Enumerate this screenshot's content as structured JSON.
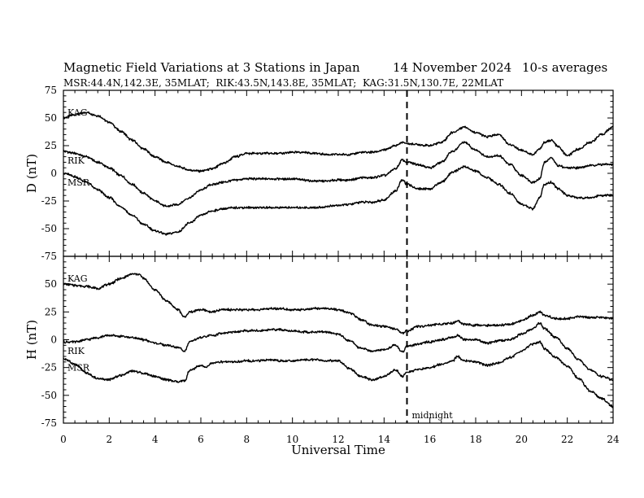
{
  "header": {
    "title": "Magnetic Field Variations at 3 Stations in Japan",
    "date": "14 November 2024",
    "averaging": "10-s averages",
    "stations_line": "MSR:44.4N,142.3E, 35MLAT;  RIK:43.5N,143.8E, 35MLAT;  KAG:31.5N,130.7E, 22MLAT"
  },
  "annotation": {
    "midnight_label": "midnight",
    "midnight_ut": 15
  },
  "chart_data": [
    {
      "id": "D",
      "type": "line",
      "ylabel": "D (nT)",
      "xlabel": "",
      "xlim": [
        0,
        24
      ],
      "ylim": [
        -75,
        75
      ],
      "yticks": [
        75,
        50,
        25,
        0,
        -25,
        -50,
        -75
      ],
      "grid": false,
      "series": [
        {
          "name": "KAG",
          "x": [
            0,
            0.5,
            1,
            1.5,
            2,
            2.5,
            3,
            3.5,
            4,
            4.5,
            5,
            5.5,
            6,
            6.5,
            7,
            7.5,
            8,
            8.5,
            9,
            9.5,
            10,
            10.5,
            11,
            11.5,
            12,
            12.5,
            13,
            13.5,
            14,
            14.5,
            14.8,
            15,
            15.5,
            16,
            16.5,
            17,
            17.5,
            18,
            18.5,
            19,
            19.5,
            20,
            20.5,
            20.8,
            21,
            21.3,
            21.6,
            22,
            22.5,
            23,
            23.5,
            24
          ],
          "values": [
            50,
            53,
            55,
            52,
            46,
            38,
            30,
            22,
            15,
            10,
            6,
            3,
            2,
            4,
            9,
            15,
            18,
            18,
            18,
            18,
            19,
            19,
            18,
            17,
            17,
            17,
            19,
            19,
            21,
            25,
            28,
            27,
            26,
            25,
            28,
            37,
            42,
            37,
            33,
            35,
            26,
            21,
            17,
            22,
            28,
            30,
            24,
            16,
            22,
            28,
            35,
            42
          ]
        },
        {
          "name": "RIK",
          "x": [
            0,
            0.5,
            1,
            1.5,
            2,
            2.5,
            3,
            3.5,
            4,
            4.5,
            5,
            5.5,
            6,
            6.5,
            7,
            7.5,
            8,
            8.5,
            9,
            9.5,
            10,
            10.5,
            11,
            11.5,
            12,
            12.5,
            13,
            13.5,
            14,
            14.5,
            14.8,
            15,
            15.5,
            16,
            16.5,
            17,
            17.5,
            18,
            18.5,
            19,
            19.5,
            20,
            20.5,
            20.8,
            21,
            21.3,
            21.6,
            22,
            22.5,
            23,
            23.5,
            24
          ],
          "values": [
            20,
            18,
            15,
            10,
            5,
            -2,
            -10,
            -18,
            -25,
            -30,
            -28,
            -22,
            -15,
            -10,
            -8,
            -6,
            -5,
            -5,
            -5,
            -5,
            -5,
            -6,
            -7,
            -7,
            -6,
            -6,
            -4,
            -4,
            -2,
            4,
            12,
            10,
            8,
            5,
            10,
            20,
            28,
            21,
            15,
            16,
            8,
            -2,
            -8,
            -5,
            10,
            14,
            7,
            5,
            5,
            7,
            8,
            8
          ]
        },
        {
          "name": "MSR",
          "x": [
            0,
            0.5,
            1,
            1.5,
            2,
            2.5,
            3,
            3.5,
            4,
            4.5,
            5,
            5.5,
            6,
            6.5,
            7,
            7.5,
            8,
            8.5,
            9,
            9.5,
            10,
            10.5,
            11,
            11.5,
            12,
            12.5,
            13,
            13.5,
            14,
            14.5,
            14.8,
            15,
            15.5,
            16,
            16.5,
            17,
            17.5,
            18,
            18.5,
            19,
            19.5,
            20,
            20.5,
            20.8,
            21,
            21.3,
            21.6,
            22,
            22.5,
            23,
            23.5,
            24
          ],
          "values": [
            0,
            -3,
            -8,
            -15,
            -22,
            -30,
            -38,
            -46,
            -52,
            -55,
            -53,
            -45,
            -38,
            -34,
            -32,
            -31,
            -31,
            -31,
            -31,
            -31,
            -31,
            -31,
            -31,
            -30,
            -29,
            -28,
            -26,
            -26,
            -24,
            -16,
            -6,
            -10,
            -14,
            -14,
            -8,
            1,
            6,
            2,
            -4,
            -10,
            -18,
            -28,
            -32,
            -22,
            -10,
            -8,
            -14,
            -20,
            -22,
            -22,
            -20,
            -20
          ]
        }
      ]
    },
    {
      "id": "H",
      "type": "line",
      "ylabel": "H (nT)",
      "xlabel": "Universal Time",
      "xlim": [
        0,
        24
      ],
      "ylim": [
        -75,
        75
      ],
      "yticks": [
        50,
        25,
        0,
        -25,
        -50,
        -75
      ],
      "xticks": [
        0,
        2,
        4,
        6,
        8,
        10,
        12,
        14,
        16,
        18,
        20,
        22,
        24
      ],
      "grid": false,
      "series": [
        {
          "name": "KAG",
          "x": [
            0,
            0.5,
            1,
            1.5,
            2,
            2.5,
            3,
            3.3,
            3.5,
            4,
            4.5,
            5,
            5.3,
            5.5,
            6,
            6.5,
            7,
            7.5,
            8,
            8.5,
            9,
            9.5,
            10,
            10.5,
            11,
            11.5,
            12,
            12.5,
            13,
            13.5,
            14,
            14.5,
            14.8,
            15,
            15.5,
            16,
            16.5,
            17,
            17.2,
            17.5,
            18,
            18.5,
            19,
            19.5,
            20,
            20.5,
            20.8,
            21,
            21.5,
            22,
            22.5,
            23,
            23.5,
            24
          ],
          "values": [
            50,
            49,
            48,
            46,
            50,
            55,
            59,
            59,
            55,
            45,
            35,
            27,
            20,
            25,
            27,
            25,
            27,
            27,
            27,
            27,
            28,
            28,
            27,
            27,
            28,
            28,
            27,
            24,
            18,
            13,
            12,
            10,
            6,
            8,
            12,
            13,
            14,
            15,
            17,
            14,
            13,
            13,
            13,
            14,
            17,
            22,
            25,
            22,
            19,
            19,
            21,
            20,
            20,
            19
          ]
        },
        {
          "name": "RIK",
          "x": [
            0,
            0.5,
            1,
            1.5,
            2,
            2.5,
            3,
            3.5,
            4,
            4.5,
            5,
            5.3,
            5.5,
            6,
            6.5,
            7,
            7.5,
            8,
            8.5,
            9,
            9.5,
            10,
            10.5,
            11,
            11.5,
            12,
            12.5,
            13,
            13.5,
            14,
            14.5,
            14.8,
            15,
            15.5,
            16,
            16.5,
            17,
            17.2,
            17.5,
            18,
            18.5,
            19,
            19.5,
            20,
            20.5,
            20.8,
            21,
            21.5,
            22,
            22.5,
            23,
            23.5,
            24
          ],
          "values": [
            -2,
            -2,
            0,
            2,
            4,
            3,
            2,
            0,
            -3,
            -5,
            -7,
            -10,
            -2,
            2,
            4,
            6,
            7,
            8,
            8,
            9,
            9,
            8,
            7,
            7,
            7,
            5,
            -1,
            -8,
            -10,
            -9,
            -5,
            -11,
            -6,
            -4,
            -2,
            0,
            2,
            4,
            0,
            0,
            -3,
            -1,
            0,
            5,
            10,
            15,
            10,
            2,
            -8,
            -18,
            -27,
            -33,
            -36
          ]
        },
        {
          "name": "MSR",
          "x": [
            0,
            0.5,
            1,
            1.5,
            2,
            2.5,
            3,
            3.5,
            4,
            4.5,
            5,
            5.3,
            5.5,
            6,
            6.2,
            6.5,
            7,
            7.5,
            8,
            8.5,
            9,
            9.5,
            10,
            10.5,
            11,
            11.5,
            12,
            12.5,
            13,
            13.5,
            14,
            14.5,
            14.8,
            15,
            15.5,
            16,
            16.5,
            17,
            17.2,
            17.5,
            18,
            18.5,
            19,
            19.5,
            20,
            20.5,
            20.8,
            21,
            21.5,
            22,
            22.5,
            23,
            23.5,
            24
          ],
          "values": [
            -17,
            -22,
            -30,
            -35,
            -36,
            -32,
            -28,
            -30,
            -33,
            -36,
            -38,
            -37,
            -28,
            -23,
            -25,
            -21,
            -20,
            -20,
            -19,
            -19,
            -18,
            -19,
            -19,
            -18,
            -18,
            -19,
            -19,
            -26,
            -33,
            -36,
            -33,
            -27,
            -33,
            -29,
            -27,
            -25,
            -22,
            -19,
            -15,
            -19,
            -20,
            -23,
            -21,
            -16,
            -10,
            -4,
            -2,
            -8,
            -16,
            -24,
            -35,
            -46,
            -53,
            -60
          ]
        }
      ]
    }
  ]
}
